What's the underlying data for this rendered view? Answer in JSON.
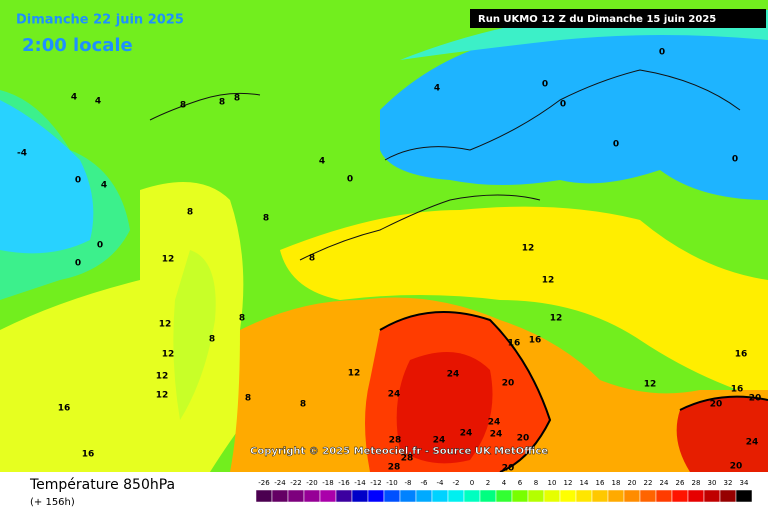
{
  "header": {
    "date": "Dimanche 22 juin 2025",
    "time": "2:00 locale",
    "run": "Run UKMO 12 Z du Dimanche 15 juin 2025"
  },
  "copyright": "Copyright © 2025 Meteociel.fr - Source UK MetOffice",
  "footer": {
    "title": "Température 850hPa",
    "lead": "(+ 156h)"
  },
  "legend": {
    "values": [
      -26,
      -24,
      -22,
      -20,
      -18,
      -16,
      -14,
      -12,
      -10,
      -8,
      -6,
      -4,
      -2,
      0,
      2,
      4,
      6,
      8,
      10,
      12,
      14,
      16,
      18,
      20,
      22,
      24,
      26,
      28,
      30,
      32,
      34
    ],
    "colors": [
      "#4b0050",
      "#640064",
      "#7d007d",
      "#960096",
      "#aa00aa",
      "#3c00a0",
      "#0000c8",
      "#0000ff",
      "#0050ff",
      "#0082ff",
      "#00aaff",
      "#00d2ff",
      "#00f0f0",
      "#00ffc0",
      "#00ff80",
      "#32ff32",
      "#78ff00",
      "#b4ff00",
      "#e6ff00",
      "#ffff00",
      "#ffe600",
      "#ffc800",
      "#ffaa00",
      "#ff8c00",
      "#ff6400",
      "#ff3c00",
      "#ff1400",
      "#e60000",
      "#c00000",
      "#960000",
      "#000000"
    ]
  },
  "map": {
    "labels": [
      -4,
      0,
      0,
      0,
      4,
      4,
      4,
      4,
      4,
      0,
      0,
      0,
      0,
      0,
      0,
      8,
      8,
      8,
      8,
      8,
      8,
      8,
      8,
      8,
      8,
      12,
      12,
      12,
      12,
      12,
      12,
      12,
      12,
      12,
      12,
      16,
      16,
      16,
      16,
      16,
      16,
      20,
      20,
      20,
      20,
      20,
      24,
      24,
      24,
      24,
      24,
      24,
      24,
      28,
      28,
      28,
      20
    ]
  }
}
